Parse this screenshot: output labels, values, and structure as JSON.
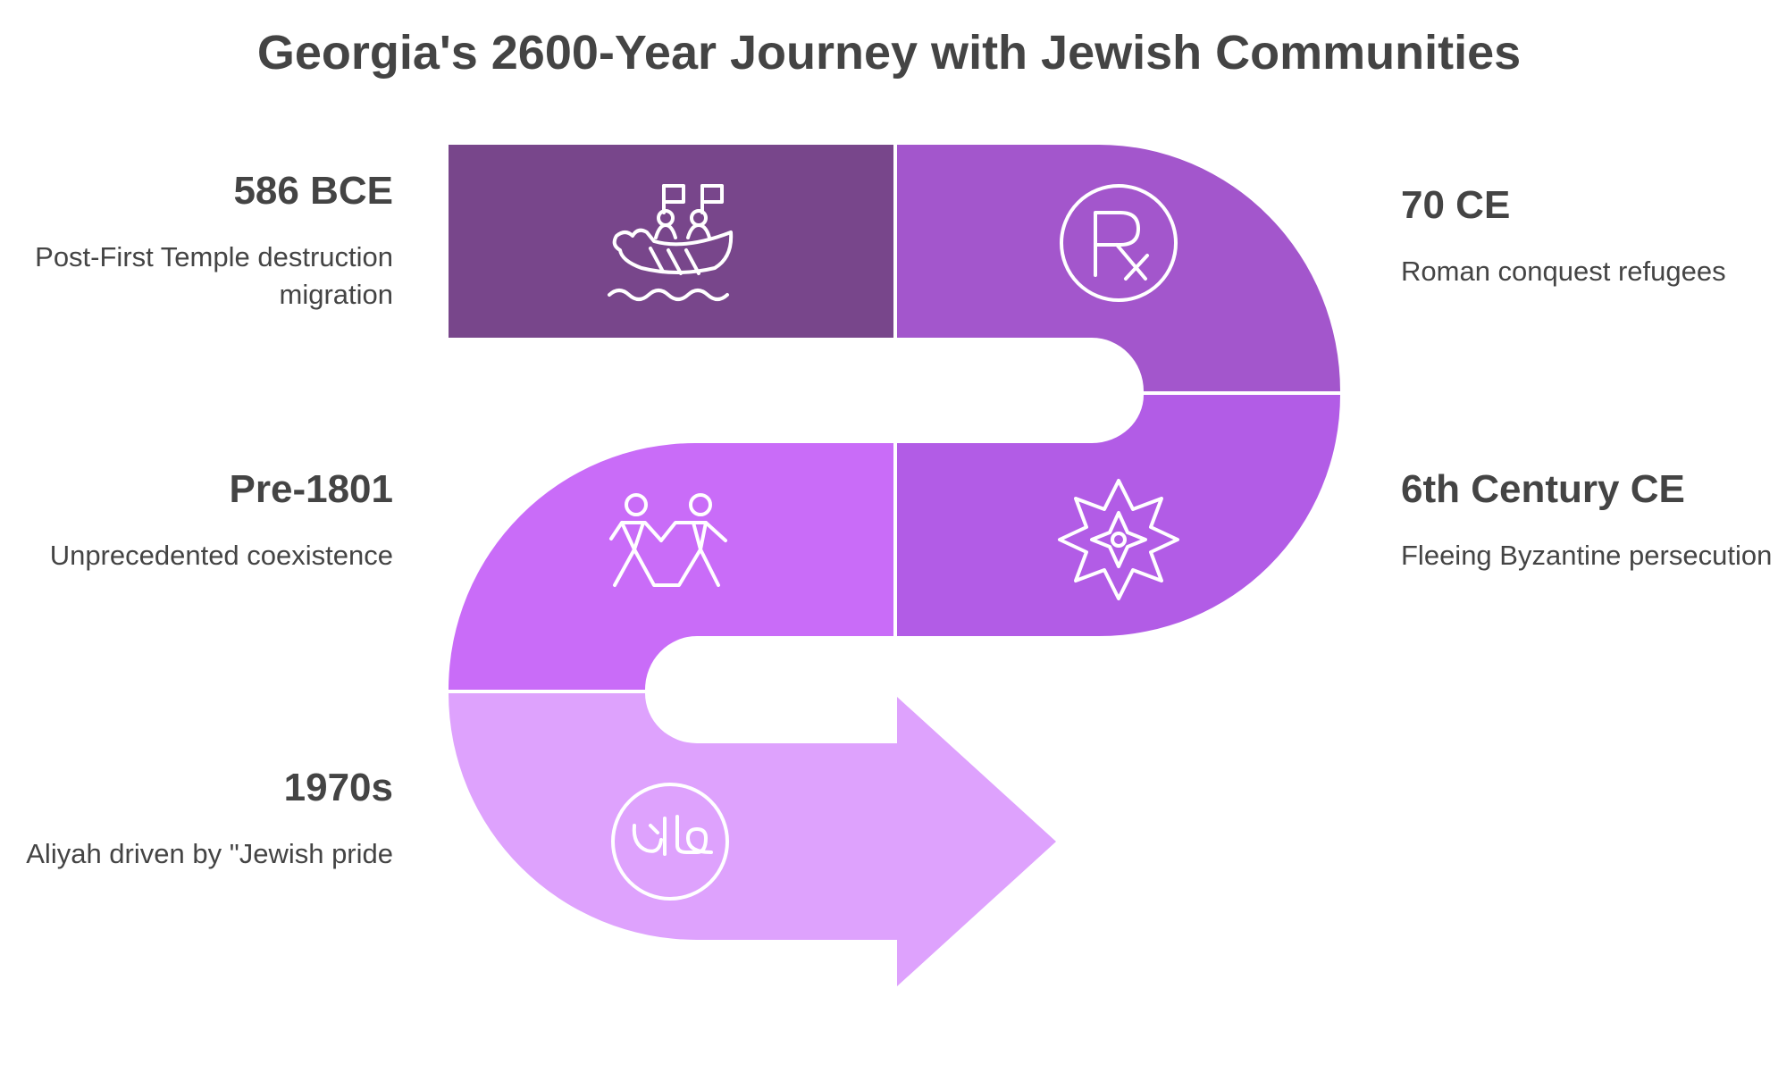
{
  "title": "Georgia's 2600-Year Journey with Jewish Communities",
  "colors": {
    "segment_1": "#78468b",
    "segment_2": "#a356cc",
    "segment_3": "#b25ce6",
    "segment_4": "#c96cf8",
    "segment_5": "#dea2fd",
    "icon_stroke": "#ffffff",
    "text": "#444444"
  },
  "events": [
    {
      "date": "586 BCE",
      "description": "Post-First Temple destruction migration",
      "icon": "ship-icon"
    },
    {
      "date": "70 CE",
      "description": "Roman conquest refugees",
      "icon": "rx-icon"
    },
    {
      "date": "6th Century CE",
      "description": "Fleeing Byzantine persecution",
      "icon": "star-compass-icon"
    },
    {
      "date": "Pre-1801",
      "description": "Unprecedented coexistence",
      "icon": "people-icon"
    },
    {
      "date": "1970s",
      "description": "Aliyah driven by \"Jewish pride",
      "icon": "halal-icon"
    }
  ]
}
